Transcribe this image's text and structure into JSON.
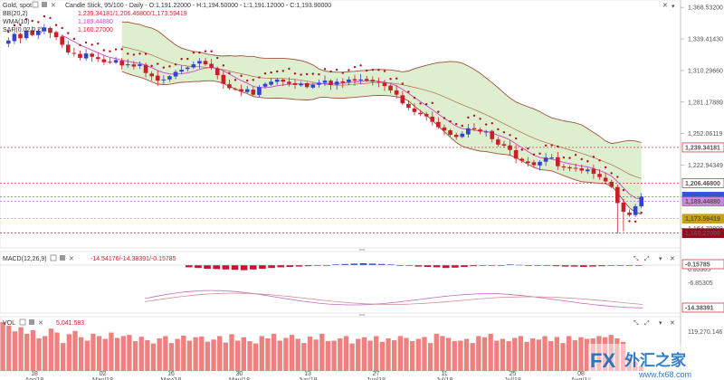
{
  "header": {
    "symbol": "Gold, spot",
    "description": "Candle Stick, 95/100 - Daily - O:1,191.22000 - H:1,194.50000 - L:1,191.12000 - C:1,193.90000",
    "indicators": [
      {
        "name": "BB(20,2)",
        "values": "1,239.34181/1,206.46800/1,173.59419",
        "color": "#cc2233"
      },
      {
        "name": "WMA(10)",
        "values": "1,189.44880",
        "color": "#cc44cc"
      },
      {
        "name": "SAR(0.02,0.2)",
        "values": "1,160.27000",
        "color": "#cc2233"
      }
    ]
  },
  "colors": {
    "bull": "#3344cc",
    "bear": "#c8202a",
    "band_fill": "#d7ecc6",
    "band_edge": "#a0523a",
    "wma": "#cc44cc",
    "sar": "#b01020",
    "macd_pos": "#2244cc",
    "macd_neg": "#cc1133",
    "vol_bar": "#ee8080"
  },
  "icons": {
    "toolbar": [
      "expand-icon",
      "square-icon",
      "close-icon"
    ],
    "panel_controls": [
      "collapse-icon",
      "maximize-icon",
      "arrow-down-icon",
      "close-icon"
    ],
    "drag_handle": "drag-handle-icon"
  },
  "chart_data": [
    {
      "type": "candlestick",
      "panel": "price",
      "x_tick_labels": [
        "18\nApr/18",
        "02\nMay/18",
        "16\nMay/18",
        "30\nMay/18",
        "13\nJun/18",
        "27\nJun/18",
        "11\nJul/18",
        "25\nJul/18",
        "08\nAug/18"
      ],
      "y_ticks": [
        "1,368.53200",
        "1,339.41430",
        "1,310.29660",
        "1,281.17889",
        "1,252.06119",
        "1,222.94349",
        "1,193.90000",
        "1,164.70808"
      ],
      "ylim": [
        1150,
        1372
      ],
      "markers": [
        {
          "label": "1,239.34181",
          "value": 1239.34,
          "style": "red"
        },
        {
          "label": "1,206.46800",
          "value": 1206.47,
          "style": "red"
        },
        {
          "label": "1,193.90000",
          "value": 1193.9,
          "style": "blue"
        },
        {
          "label": "1,189.44880",
          "value": 1189.45,
          "style": "violet"
        },
        {
          "label": "1,173.59419",
          "value": 1173.59,
          "style": "gold"
        },
        {
          "label": "1,160.27000",
          "value": 1160.27,
          "style": "darkred"
        }
      ],
      "close": [
        1338,
        1344,
        1340,
        1347,
        1343,
        1347,
        1350,
        1345,
        1341,
        1334,
        1327,
        1326,
        1322,
        1326,
        1323,
        1321,
        1318,
        1318,
        1320,
        1315,
        1316,
        1314,
        1316,
        1308,
        1305,
        1301,
        1302,
        1305,
        1309,
        1311,
        1313,
        1316,
        1319,
        1316,
        1313,
        1306,
        1298,
        1294,
        1293,
        1291,
        1293,
        1288,
        1295,
        1298,
        1300,
        1302,
        1300,
        1298,
        1297,
        1298,
        1295,
        1297,
        1299,
        1301,
        1297,
        1300,
        1299,
        1302,
        1301,
        1302,
        1301,
        1300,
        1299,
        1296,
        1292,
        1288,
        1280,
        1276,
        1272,
        1270,
        1268,
        1263,
        1258,
        1255,
        1251,
        1249,
        1252,
        1257,
        1256,
        1254,
        1254,
        1247,
        1242,
        1241,
        1237,
        1229,
        1227,
        1225,
        1223,
        1226,
        1230,
        1230,
        1222,
        1221,
        1220,
        1220,
        1218,
        1219,
        1215,
        1212,
        1208,
        1203,
        1188,
        1180,
        1177,
        1185,
        1193.9
      ],
      "series": [
        {
          "name": "BB(20,2)"
        },
        {
          "name": "WMA(10)"
        },
        {
          "name": "SAR(0.02,0.2)"
        }
      ]
    },
    {
      "type": "bar",
      "panel": "macd",
      "title": "MACD(12,26,9)",
      "legend_values": "-14.54176/-14.38391/-0.15785",
      "y_ticks": [
        "6.85305",
        "-6.85305"
      ],
      "markers": [
        {
          "label": "-0.15785",
          "value": -0.15785,
          "style": "red"
        },
        {
          "label": "-14.38391",
          "value": -14.38391,
          "style": "red"
        }
      ],
      "histogram": [
        -0.6,
        -0.8,
        -1.0,
        -1.1,
        -1.2,
        -1.3,
        -1.4,
        -1.2,
        -1.0,
        -0.8,
        -0.6,
        -0.5,
        -0.4,
        -0.3,
        -0.2,
        0.0,
        0.2,
        0.3,
        0.4,
        0.5,
        0.4,
        0.3,
        0.2,
        0.0,
        -0.2,
        -0.4,
        -0.5,
        -0.6,
        -0.8,
        -0.7,
        -0.5,
        -0.3,
        -0.2,
        -0.1,
        0.0,
        0.2,
        0.1,
        0.0,
        -0.1,
        -0.2,
        -0.3,
        -0.4,
        -0.4,
        -0.5,
        -0.4,
        -0.3,
        -0.2,
        -0.1,
        0.0,
        -0.15785
      ]
    },
    {
      "type": "bar",
      "panel": "volume",
      "title": "VOL",
      "legend_values": "5,041.583",
      "y_ticks": [
        "119,270.146"
      ],
      "values": [
        210,
        195,
        170,
        188,
        160,
        175,
        140,
        150,
        182,
        165,
        120,
        158,
        172,
        145,
        130,
        160,
        150,
        138,
        165,
        142,
        150,
        155,
        128,
        147,
        132,
        118,
        140,
        150,
        120,
        138,
        152,
        130,
        145,
        148,
        126,
        135,
        150,
        122,
        158,
        130,
        145,
        128,
        118,
        150,
        140,
        160,
        130,
        142,
        155,
        138,
        120,
        148,
        135,
        160,
        128,
        130,
        140,
        150,
        118,
        138,
        145,
        130,
        150,
        125,
        140,
        132,
        150,
        142,
        128,
        138,
        146,
        120,
        160,
        150,
        142,
        128,
        130,
        138,
        120,
        150,
        145,
        160,
        130,
        138,
        128,
        142,
        150,
        125,
        140,
        135,
        150,
        128,
        146,
        120,
        150,
        132,
        145,
        138,
        140,
        150,
        145,
        155,
        140,
        125,
        60,
        40,
        20
      ]
    }
  ]
}
